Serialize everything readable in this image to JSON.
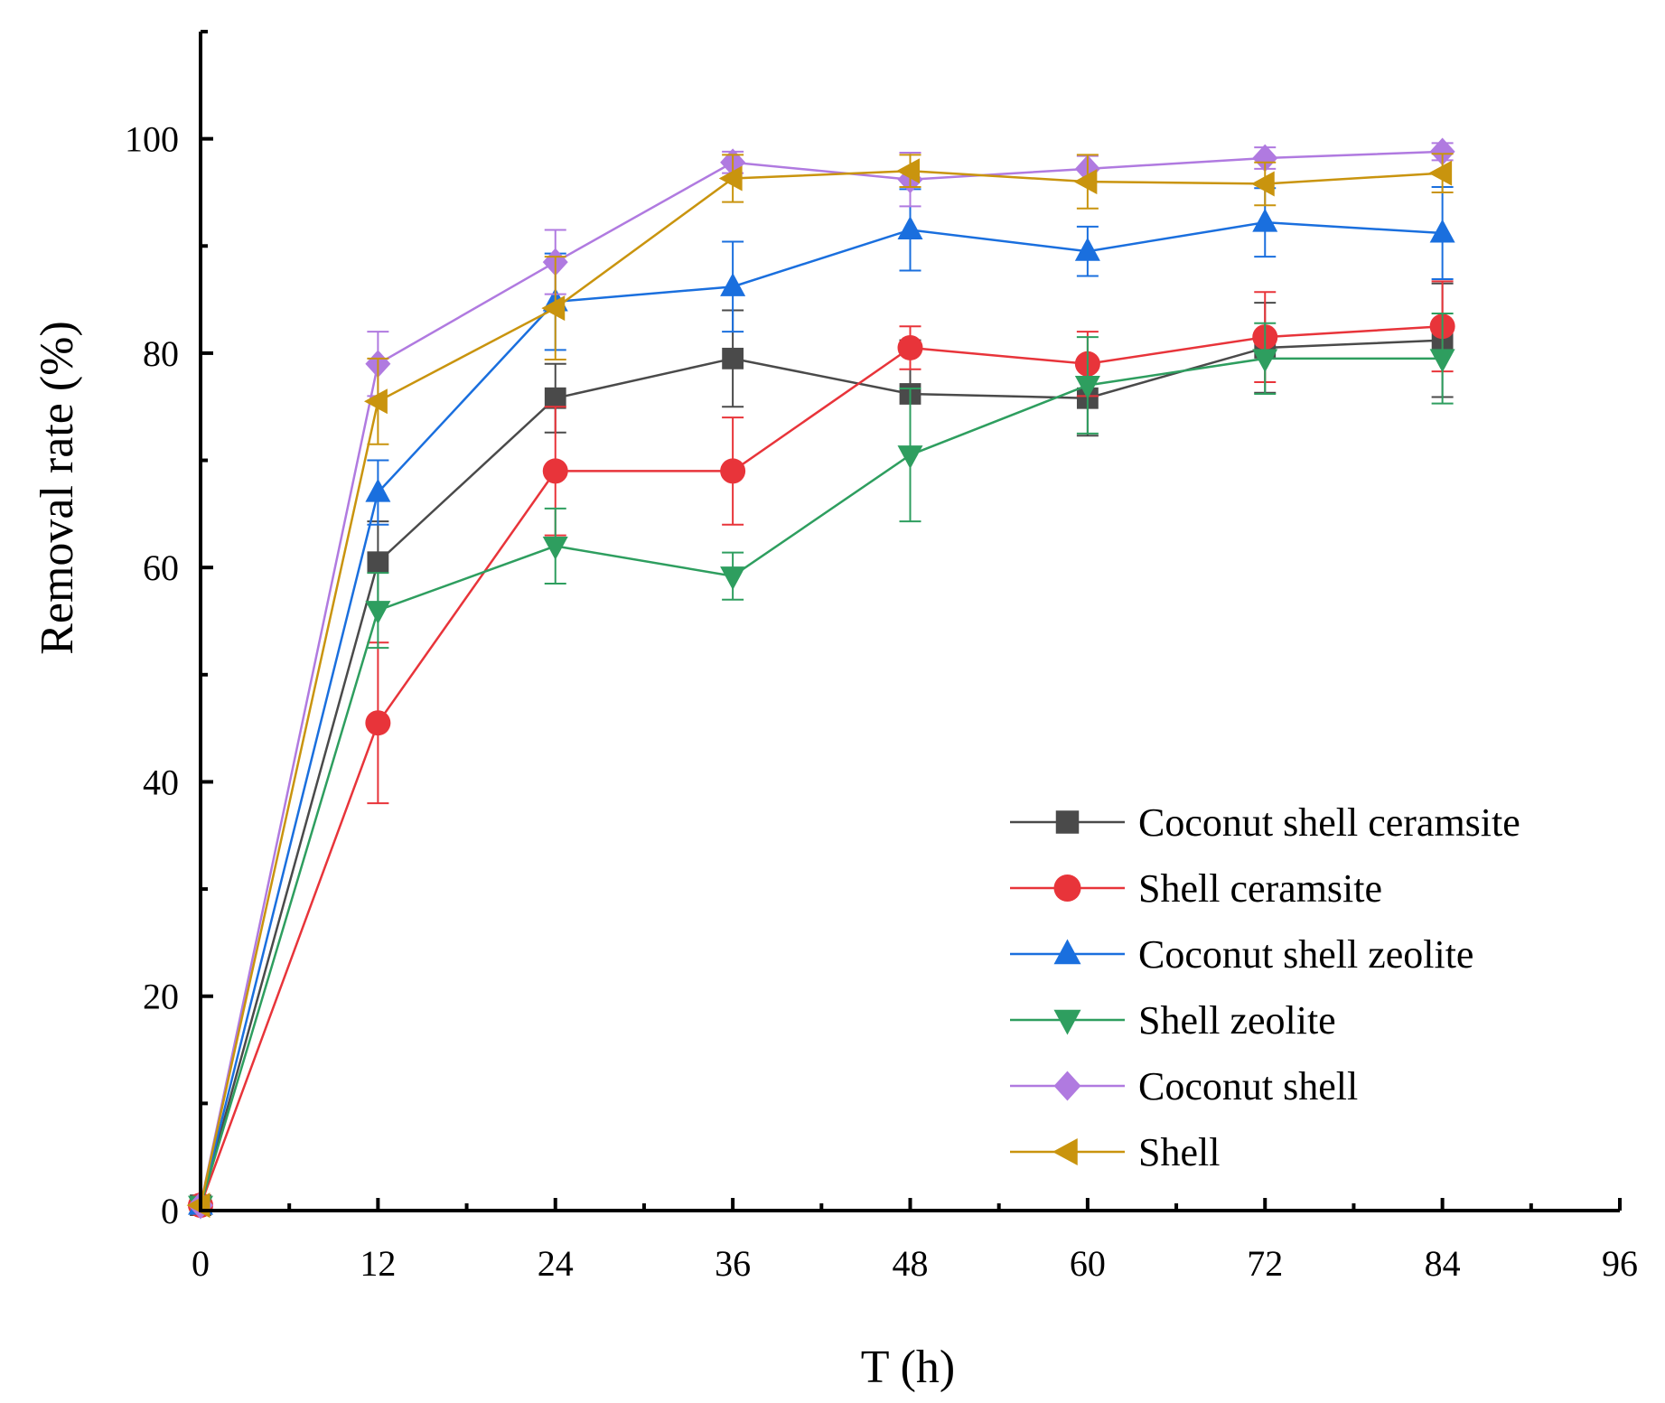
{
  "chart_data": {
    "type": "line",
    "title": "",
    "xlabel": "T (h)",
    "ylabel": "Removal rate (%)",
    "xlim": [
      0,
      96
    ],
    "ylim": [
      0,
      110
    ],
    "x_ticks": [
      0,
      12,
      24,
      36,
      48,
      60,
      72,
      84,
      96
    ],
    "x_tick_labels": [
      "0",
      "12",
      "24",
      "36",
      "48",
      "60",
      "72",
      "84",
      "96"
    ],
    "y_ticks": [
      0,
      20,
      40,
      60,
      80,
      100
    ],
    "y_tick_labels": [
      "0",
      "20",
      "40",
      "60",
      "80",
      "100"
    ],
    "grid": false,
    "legend_position": "bottom-right",
    "x": [
      0,
      12,
      24,
      36,
      48,
      60,
      72,
      84
    ],
    "series": [
      {
        "name": "Coconut shell ceramsite",
        "marker": "square",
        "color": "#4a4a4a",
        "values": [
          0.5,
          60.5,
          75.8,
          79.5,
          76.2,
          75.8,
          80.5,
          81.2
        ],
        "errors": [
          0,
          3.8,
          3.2,
          4.5,
          5.0,
          3.5,
          4.2,
          5.3
        ]
      },
      {
        "name": "Shell ceramsite",
        "marker": "circle",
        "color": "#e8343a",
        "values": [
          0.5,
          45.5,
          69.0,
          69.0,
          80.5,
          79.0,
          81.5,
          82.5
        ],
        "errors": [
          0,
          7.5,
          6.0,
          5.0,
          2.0,
          3.0,
          4.2,
          4.2
        ]
      },
      {
        "name": "Coconut shell zeolite",
        "marker": "triangle-up",
        "color": "#1a6fde",
        "values": [
          0.5,
          67.0,
          84.8,
          86.2,
          91.5,
          89.5,
          92.2,
          91.2
        ],
        "errors": [
          0,
          3.0,
          4.5,
          4.2,
          3.8,
          2.3,
          3.2,
          4.3
        ]
      },
      {
        "name": "Shell zeolite",
        "marker": "triangle-down",
        "color": "#2e9e5f",
        "values": [
          0.5,
          56.0,
          62.0,
          59.2,
          70.5,
          77.0,
          79.5,
          79.5
        ],
        "errors": [
          0,
          3.5,
          3.5,
          2.2,
          6.2,
          4.5,
          3.3,
          4.2
        ]
      },
      {
        "name": "Coconut shell",
        "marker": "diamond",
        "color": "#b07ae0",
        "values": [
          0.5,
          79.0,
          88.5,
          97.8,
          96.2,
          97.2,
          98.2,
          98.8
        ],
        "errors": [
          0,
          3.0,
          3.0,
          1.0,
          2.5,
          1.2,
          1.0,
          0.8
        ]
      },
      {
        "name": "Shell",
        "marker": "triangle-left",
        "color": "#c9940e",
        "values": [
          0.5,
          75.5,
          84.2,
          96.3,
          97.0,
          96.0,
          95.8,
          96.8
        ],
        "errors": [
          0,
          4.0,
          4.8,
          2.2,
          1.5,
          2.5,
          2.0,
          1.8
        ]
      }
    ]
  }
}
